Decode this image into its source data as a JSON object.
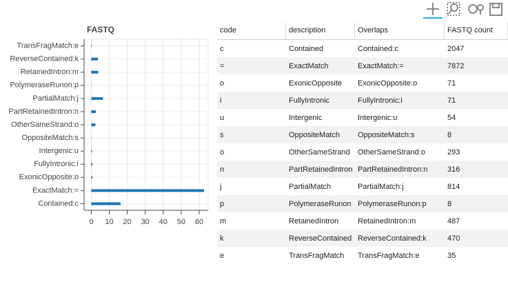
{
  "chart_data": {
    "type": "hbar",
    "title": "FASTQ",
    "categories": [
      "Contained:c",
      "ExactMatch:=",
      "ExonicOpposite:o",
      "FullyIntronic:i",
      "Intergenic:u",
      "OppositeMatch:s",
      "OtherSameStrand:o",
      "PartRetainedIntron:n",
      "PartialMatch:j",
      "PolymeraseRunon:p",
      "RetainedIntron:m",
      "ReverseContained:k",
      "TransFragMatch:e"
    ],
    "values": [
      16.3,
      62.7,
      0.6,
      0.6,
      0.4,
      0.1,
      2.3,
      2.5,
      6.5,
      0.1,
      3.9,
      3.7,
      0.3
    ],
    "color": "#1f77b4",
    "xlim": [
      -4,
      65
    ],
    "xticks": [
      0,
      10,
      20,
      30,
      40,
      50,
      60
    ],
    "grid": true
  },
  "table": {
    "columns": [
      "code",
      "description",
      "Overlaps",
      "FASTQ count"
    ],
    "rows": [
      [
        "c",
        "Contained",
        "Contained:c",
        2047
      ],
      [
        "=",
        "ExactMatch",
        "ExactMatch:=",
        7872
      ],
      [
        "o",
        "ExonicOpposite",
        "ExonicOpposite:o",
        71
      ],
      [
        "i",
        "FullyIntronic",
        "FullyIntronic:i",
        71
      ],
      [
        "u",
        "Intergenic",
        "Intergenic:u",
        54
      ],
      [
        "s",
        "OppositeMatch",
        "OppositeMatch:s",
        8
      ],
      [
        "o",
        "OtherSameStrand",
        "OtherSameStrand:o",
        293
      ],
      [
        "n",
        "PartRetainedIntron",
        "PartRetainedIntron:n",
        316
      ],
      [
        "j",
        "PartialMatch",
        "PartialMatch:j",
        814
      ],
      [
        "p",
        "PolymeraseRunon",
        "PolymeraseRunon:p",
        8
      ],
      [
        "m",
        "RetainedIntron",
        "RetainedIntron:m",
        487
      ],
      [
        "k",
        "ReverseContained",
        "ReverseContained:k",
        470
      ],
      [
        "e",
        "TransFragMatch",
        "TransFragMatch:e",
        35
      ]
    ]
  }
}
